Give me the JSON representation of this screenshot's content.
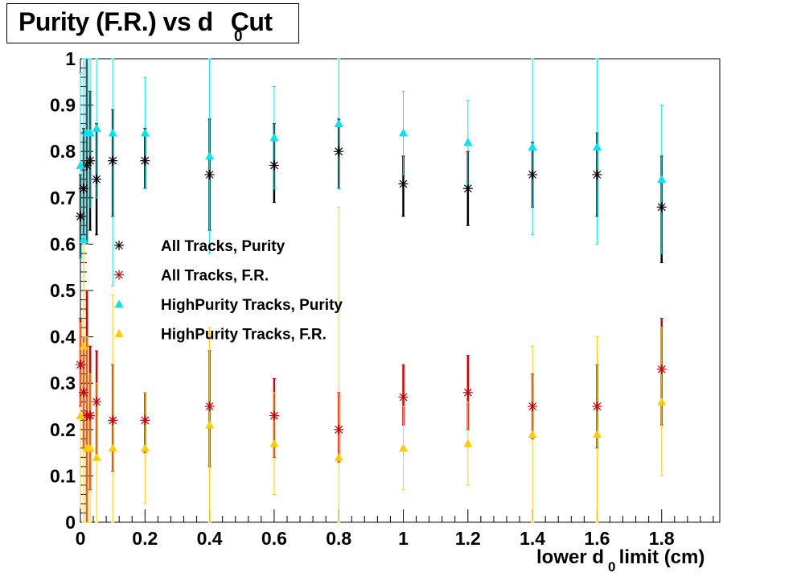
{
  "title": {
    "main": "Purity (F.R.) vs d",
    "sub": "0",
    "tail": "Cut"
  },
  "xaxis": {
    "label_main": "lower d",
    "label_sub": "0",
    "label_tail": " limit (cm)"
  },
  "chart_data": {
    "type": "scatter",
    "xlim": [
      0,
      1.98
    ],
    "ylim": [
      0,
      1
    ],
    "x_ticks": [
      "0",
      "0.2",
      "0.4",
      "0.6",
      "0.8",
      "1",
      "1.2",
      "1.4",
      "1.6",
      "1.8"
    ],
    "y_ticks": [
      "0",
      "0.1",
      "0.2",
      "0.3",
      "0.4",
      "0.5",
      "0.6",
      "0.7",
      "0.8",
      "0.9",
      "1"
    ],
    "grid": false,
    "legend_position": "middle-left",
    "series": [
      {
        "name": "All Tracks, Purity",
        "marker": "asterisk",
        "color": "#000000",
        "errcolor": "#000000",
        "points": [
          {
            "x": 0.0,
            "y": 0.66,
            "lo": 0.57,
            "hi": 0.75
          },
          {
            "x": 0.01,
            "y": 0.72,
            "lo": 0.62,
            "hi": 0.85
          },
          {
            "x": 0.02,
            "y": 0.77,
            "lo": 0.6,
            "hi": 1.0
          },
          {
            "x": 0.03,
            "y": 0.78,
            "lo": 0.63,
            "hi": 0.93
          },
          {
            "x": 0.05,
            "y": 0.74,
            "lo": 0.62,
            "hi": 0.86
          },
          {
            "x": 0.1,
            "y": 0.78,
            "lo": 0.66,
            "hi": 0.89
          },
          {
            "x": 0.2,
            "y": 0.78,
            "lo": 0.72,
            "hi": 0.85
          },
          {
            "x": 0.4,
            "y": 0.75,
            "lo": 0.63,
            "hi": 0.87
          },
          {
            "x": 0.6,
            "y": 0.77,
            "lo": 0.69,
            "hi": 0.86
          },
          {
            "x": 0.8,
            "y": 0.8,
            "lo": 0.72,
            "hi": 0.87
          },
          {
            "x": 1.0,
            "y": 0.73,
            "lo": 0.66,
            "hi": 0.79
          },
          {
            "x": 1.2,
            "y": 0.72,
            "lo": 0.64,
            "hi": 0.8
          },
          {
            "x": 1.4,
            "y": 0.75,
            "lo": 0.68,
            "hi": 0.82
          },
          {
            "x": 1.6,
            "y": 0.75,
            "lo": 0.66,
            "hi": 0.84
          },
          {
            "x": 1.8,
            "y": 0.68,
            "lo": 0.56,
            "hi": 0.79
          }
        ]
      },
      {
        "name": "All Tracks, F.R.",
        "marker": "asterisk",
        "color": "#cc0000",
        "errcolor": "#dd0000",
        "points": [
          {
            "x": 0.0,
            "y": 0.34,
            "lo": 0.25,
            "hi": 0.44
          },
          {
            "x": 0.01,
            "y": 0.28,
            "lo": 0.16,
            "hi": 0.4
          },
          {
            "x": 0.02,
            "y": 0.23,
            "lo": 0.0,
            "hi": 0.5
          },
          {
            "x": 0.03,
            "y": 0.23,
            "lo": 0.07,
            "hi": 0.38
          },
          {
            "x": 0.05,
            "y": 0.26,
            "lo": 0.14,
            "hi": 0.37
          },
          {
            "x": 0.1,
            "y": 0.22,
            "lo": 0.11,
            "hi": 0.34
          },
          {
            "x": 0.2,
            "y": 0.22,
            "lo": 0.15,
            "hi": 0.28
          },
          {
            "x": 0.4,
            "y": 0.25,
            "lo": 0.12,
            "hi": 0.37
          },
          {
            "x": 0.6,
            "y": 0.23,
            "lo": 0.14,
            "hi": 0.31
          },
          {
            "x": 0.8,
            "y": 0.2,
            "lo": 0.13,
            "hi": 0.28
          },
          {
            "x": 1.0,
            "y": 0.27,
            "lo": 0.21,
            "hi": 0.34
          },
          {
            "x": 1.2,
            "y": 0.28,
            "lo": 0.2,
            "hi": 0.36
          },
          {
            "x": 1.4,
            "y": 0.25,
            "lo": 0.18,
            "hi": 0.32
          },
          {
            "x": 1.6,
            "y": 0.25,
            "lo": 0.16,
            "hi": 0.34
          },
          {
            "x": 1.8,
            "y": 0.33,
            "lo": 0.21,
            "hi": 0.44
          }
        ]
      },
      {
        "name": "HighPurity Tracks, Purity",
        "marker": "triangle",
        "color": "#00e5ee",
        "errcolor": "#00e5ee",
        "points": [
          {
            "x": 0.0,
            "y": 0.77,
            "lo": 0.57,
            "hi": 0.97
          },
          {
            "x": 0.01,
            "y": 0.61,
            "lo": 0.4,
            "hi": 1.0
          },
          {
            "x": 0.02,
            "y": 0.84,
            "lo": 0.6,
            "hi": 1.0
          },
          {
            "x": 0.03,
            "y": 0.84,
            "lo": 0.68,
            "hi": 1.0
          },
          {
            "x": 0.05,
            "y": 0.85,
            "lo": 0.7,
            "hi": 1.0
          },
          {
            "x": 0.1,
            "y": 0.84,
            "lo": 0.51,
            "hi": 1.0
          },
          {
            "x": 0.2,
            "y": 0.84,
            "lo": 0.72,
            "hi": 0.96
          },
          {
            "x": 0.4,
            "y": 0.79,
            "lo": 0.58,
            "hi": 1.0
          },
          {
            "x": 0.6,
            "y": 0.83,
            "lo": 0.72,
            "hi": 0.94
          },
          {
            "x": 0.8,
            "y": 0.86,
            "lo": 0.72,
            "hi": 1.0
          },
          {
            "x": 1.0,
            "y": 0.84,
            "lo": 0.75,
            "hi": 0.93
          },
          {
            "x": 1.2,
            "y": 0.82,
            "lo": 0.73,
            "hi": 0.91
          },
          {
            "x": 1.4,
            "y": 0.81,
            "lo": 0.62,
            "hi": 1.0
          },
          {
            "x": 1.6,
            "y": 0.81,
            "lo": 0.6,
            "hi": 1.0
          },
          {
            "x": 1.8,
            "y": 0.74,
            "lo": 0.58,
            "hi": 0.9
          }
        ]
      },
      {
        "name": "HighPurity Tracks, F.R.",
        "marker": "triangle",
        "color": "#ffcc00",
        "errcolor": "#ffcc00",
        "points": [
          {
            "x": 0.0,
            "y": 0.23,
            "lo": 0.03,
            "hi": 0.43
          },
          {
            "x": 0.01,
            "y": 0.38,
            "lo": 0.0,
            "hi": 0.6
          },
          {
            "x": 0.02,
            "y": 0.16,
            "lo": 0.0,
            "hi": 0.4
          },
          {
            "x": 0.03,
            "y": 0.16,
            "lo": 0.0,
            "hi": 0.32
          },
          {
            "x": 0.05,
            "y": 0.14,
            "lo": 0.0,
            "hi": 0.3
          },
          {
            "x": 0.1,
            "y": 0.16,
            "lo": 0.0,
            "hi": 0.49
          },
          {
            "x": 0.2,
            "y": 0.16,
            "lo": 0.04,
            "hi": 0.28
          },
          {
            "x": 0.4,
            "y": 0.21,
            "lo": 0.0,
            "hi": 0.42
          },
          {
            "x": 0.6,
            "y": 0.17,
            "lo": 0.06,
            "hi": 0.28
          },
          {
            "x": 0.8,
            "y": 0.14,
            "lo": 0.0,
            "hi": 0.68
          },
          {
            "x": 1.0,
            "y": 0.16,
            "lo": 0.07,
            "hi": 0.25
          },
          {
            "x": 1.2,
            "y": 0.17,
            "lo": 0.08,
            "hi": 0.26
          },
          {
            "x": 1.4,
            "y": 0.19,
            "lo": 0.0,
            "hi": 0.38
          },
          {
            "x": 1.6,
            "y": 0.19,
            "lo": 0.0,
            "hi": 0.4
          },
          {
            "x": 1.8,
            "y": 0.26,
            "lo": 0.1,
            "hi": 0.42
          }
        ]
      }
    ]
  }
}
